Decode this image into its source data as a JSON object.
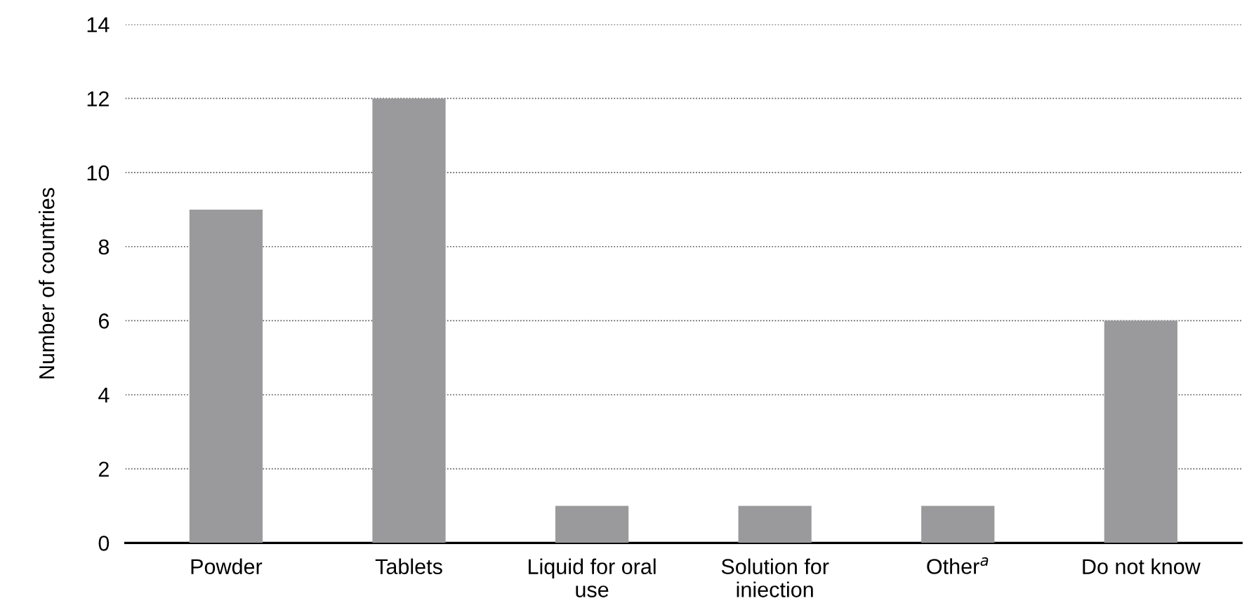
{
  "chart_data": {
    "type": "bar",
    "ylabel": "Number of countries",
    "categories": [
      "Powder",
      "Tablets",
      "Liquid for oral\nuse",
      "Solution for\niniection",
      "Other$^{a}$",
      "Do not know"
    ],
    "values": [
      9,
      12,
      1,
      1,
      1,
      6
    ],
    "color": "#9a9a9c",
    "ylim": [
      0,
      14
    ],
    "yticks": [
      0,
      2,
      4,
      6,
      8,
      10,
      12,
      14
    ],
    "grid": "y",
    "legend": false
  }
}
